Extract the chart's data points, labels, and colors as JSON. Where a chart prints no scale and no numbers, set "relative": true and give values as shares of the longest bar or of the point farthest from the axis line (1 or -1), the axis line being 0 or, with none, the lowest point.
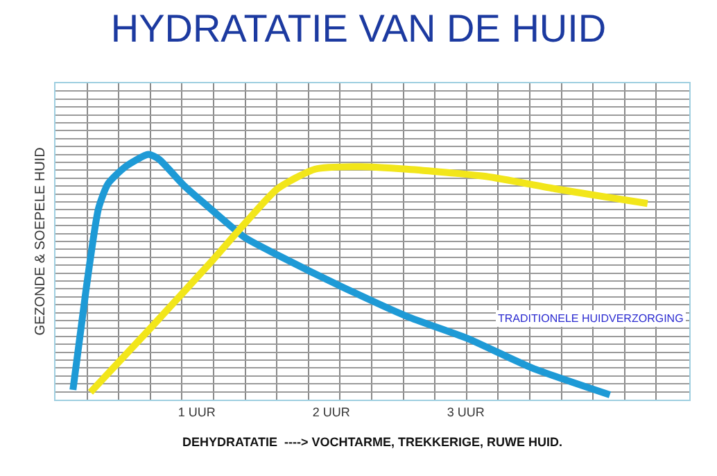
{
  "chart_data": {
    "type": "line",
    "title": "HYDRATATIE VAN DE HUID",
    "xlabel": "DEHYDRATATIE  ----> VOCHTARME, TREKKERIGE, RUWE HUID.",
    "ylabel": "GEZONDE & SOEPELE HUID",
    "relative": true,
    "xlim": [
      -0.05,
      4.66
    ],
    "xticks": [
      {
        "value": 1,
        "label": "1 UUR"
      },
      {
        "value": 2,
        "label": "2 UUR"
      },
      {
        "value": 3,
        "label": "3 UUR"
      }
    ],
    "grid": true,
    "legend": false,
    "marker": "none",
    "line_style": "solid",
    "series": [
      {
        "name": "TRADITIONELE HUIDVERZORGING",
        "color": "#1e9ad6",
        "x": [
          0.08,
          0.18,
          0.27,
          0.34,
          0.47,
          0.64,
          0.72,
          0.91,
          1.12,
          1.36,
          1.6,
          2.08,
          2.56,
          3.01,
          3.49,
          4.07
        ],
        "values": [
          0.04,
          0.46,
          0.78,
          0.88,
          0.95,
          1.0,
          0.98,
          0.87,
          0.77,
          0.66,
          0.59,
          0.46,
          0.34,
          0.25,
          0.13,
          0.02
        ]
      },
      {
        "color": "#f2e61a",
        "x": [
          0.21,
          0.67,
          1.12,
          1.36,
          1.6,
          1.88,
          2.22,
          2.56,
          3.15,
          3.66,
          4.0,
          4.35
        ],
        "values": [
          0.03,
          0.3,
          0.57,
          0.72,
          0.86,
          0.94,
          0.95,
          0.94,
          0.91,
          0.86,
          0.83,
          0.8
        ]
      }
    ]
  }
}
